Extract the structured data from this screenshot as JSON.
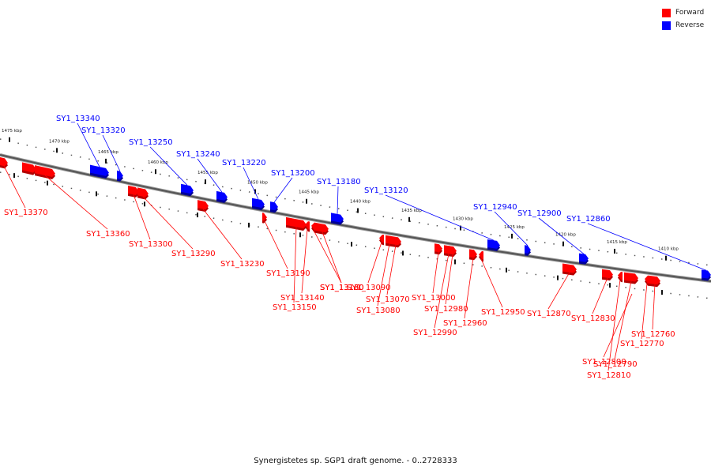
{
  "legend": [
    {
      "label": "Forward",
      "color": "#ff0000"
    },
    {
      "label": "Reverse",
      "color": "#0000ff"
    }
  ],
  "caption": "Synergistetes sp. SGP1 draft genome. - 0..2728333",
  "kbp_ticks": [
    "1475 kbp",
    "1470 kbp",
    "1465 kbp",
    "1460 kbp",
    "1455 kbp",
    "1450 kbp",
    "1445 kbp",
    "1440 kbp",
    "1435 kbp",
    "1430 kbp",
    "1425 kbp",
    "1420 kbp",
    "1415 kbp",
    "1410 kbp"
  ],
  "reverse_genes": [
    "SY1_13340",
    "SY1_13320",
    "SY1_13250",
    "SY1_13240",
    "SY1_13220",
    "SY1_13200",
    "SY1_13180",
    "SY1_13120",
    "SY1_12940",
    "SY1_12900",
    "SY1_12860"
  ],
  "forward_genes": [
    "SY1_13370",
    "SY1_13360",
    "SY1_13300",
    "SY1_13290",
    "SY1_13230",
    "SY1_13190",
    "SY1_13160",
    "SY1_13150",
    "SY1_13140",
    "SY1_13130",
    "SY1_13090",
    "SY1_13080",
    "SY1_13070",
    "SY1_13000",
    "SY1_12990",
    "SY1_12980",
    "SY1_12960",
    "SY1_12950",
    "SY1_12870",
    "SY1_12830",
    "SY1_12810",
    "SY1_12800",
    "SY1_12790",
    "SY1_12770",
    "SY1_12760"
  ]
}
